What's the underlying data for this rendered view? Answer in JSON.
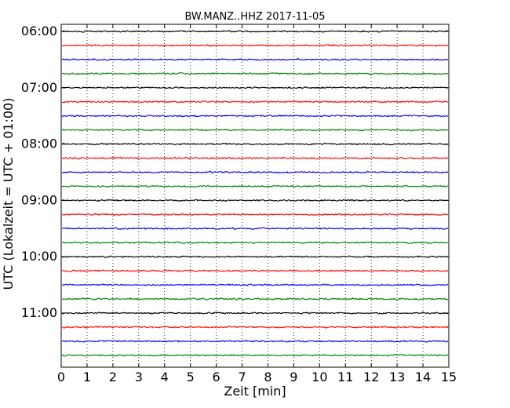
{
  "chart_data": {
    "type": "line",
    "title": "BW.MANZ..HHZ 2017-11-05",
    "xlabel": "Zeit  [min]",
    "ylabel": "UTC (Lokalzeit = UTC + 01:00)",
    "xlim": [
      0,
      15
    ],
    "x_ticks": [
      "0",
      "1",
      "2",
      "3",
      "4",
      "5",
      "6",
      "7",
      "8",
      "9",
      "10",
      "11",
      "12",
      "13",
      "14",
      "15"
    ],
    "y_ticks": [
      "06:00",
      "07:00",
      "08:00",
      "09:00",
      "10:00",
      "11:00"
    ],
    "grid": "vertical dotted at each minute",
    "trace_interval_minutes": 15,
    "start_time": "06:00",
    "end_time": "11:45",
    "trace_colors": [
      "#000000",
      "#ff0000",
      "#0000ff",
      "#008000"
    ],
    "series": [
      {
        "start": "06:00",
        "color": "#000000"
      },
      {
        "start": "06:15",
        "color": "#ff0000"
      },
      {
        "start": "06:30",
        "color": "#0000ff"
      },
      {
        "start": "06:45",
        "color": "#008000"
      },
      {
        "start": "07:00",
        "color": "#000000"
      },
      {
        "start": "07:15",
        "color": "#ff0000"
      },
      {
        "start": "07:30",
        "color": "#0000ff"
      },
      {
        "start": "07:45",
        "color": "#008000"
      },
      {
        "start": "08:00",
        "color": "#000000"
      },
      {
        "start": "08:15",
        "color": "#ff0000"
      },
      {
        "start": "08:30",
        "color": "#0000ff"
      },
      {
        "start": "08:45",
        "color": "#008000"
      },
      {
        "start": "09:00",
        "color": "#000000"
      },
      {
        "start": "09:15",
        "color": "#ff0000"
      },
      {
        "start": "09:30",
        "color": "#0000ff"
      },
      {
        "start": "09:45",
        "color": "#008000"
      },
      {
        "start": "10:00",
        "color": "#000000"
      },
      {
        "start": "10:15",
        "color": "#ff0000"
      },
      {
        "start": "10:30",
        "color": "#0000ff"
      },
      {
        "start": "10:45",
        "color": "#008000"
      },
      {
        "start": "11:00",
        "color": "#000000"
      },
      {
        "start": "11:15",
        "color": "#ff0000"
      },
      {
        "start": "11:30",
        "color": "#0000ff"
      },
      {
        "start": "11:45",
        "color": "#008000"
      }
    ]
  }
}
